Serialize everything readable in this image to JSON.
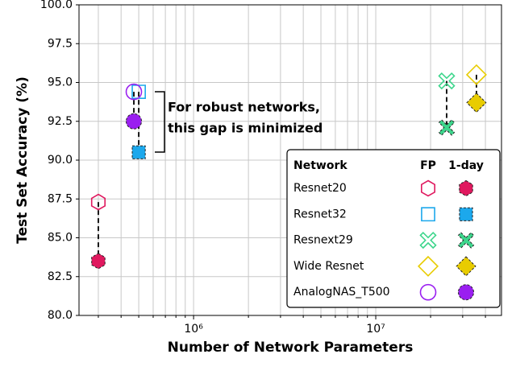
{
  "chart_data": {
    "type": "scatter",
    "y_label": "Test Set Accuracy (%)",
    "x_label": "Number of Network Parameters",
    "xlog": true,
    "xlim": [
      235000,
      49000000
    ],
    "xticks": [
      {
        "value": 1000000,
        "label": "10⁶"
      },
      {
        "value": 10000000,
        "label": "10⁷"
      }
    ],
    "xminorticks": [
      300000,
      400000,
      500000,
      600000,
      700000,
      800000,
      900000,
      2000000,
      3000000,
      4000000,
      5000000,
      6000000,
      7000000,
      8000000,
      9000000,
      20000000,
      30000000,
      40000000
    ],
    "ylim": [
      80,
      100
    ],
    "yticks": [
      {
        "value": 80,
        "label": "80.0"
      },
      82.5,
      {
        "value": 85,
        "label": "85.0"
      },
      87.5,
      {
        "value": 90,
        "label": "90.0"
      },
      92.5,
      {
        "value": 95,
        "label": "95.0"
      },
      97.5,
      {
        "value": 100,
        "label": "100.0"
      }
    ],
    "grid": true,
    "annotation": [
      "For robust networks,",
      "this gap is minimized"
    ],
    "legend_title": "Network",
    "legend_columns": [
      "FP",
      "1-day"
    ],
    "legend_position": "lower right",
    "series": [
      {
        "name": "Resnet20",
        "color": "#e0195f",
        "marker": "hexagon",
        "x": 300000,
        "fp": 87.3,
        "one_day": 83.5
      },
      {
        "name": "Resnet32",
        "color": "#1ca8ec",
        "marker": "square",
        "x": 500000,
        "fp": 94.4,
        "one_day": 90.5
      },
      {
        "name": "Resnext29",
        "color": "#3dd68c",
        "marker": "cross",
        "x": 24500000,
        "fp": 95.1,
        "one_day": 92.1
      },
      {
        "name": "Wide Resnet",
        "color": "#e8cc00",
        "marker": "diamond",
        "x": 35700000,
        "fp": 95.5,
        "one_day": 93.7
      },
      {
        "name": "AnalogNAS_T500",
        "color": "#9a1ff0",
        "marker": "circle",
        "x": 470000,
        "fp": 94.4,
        "one_day": 92.5
      }
    ]
  }
}
